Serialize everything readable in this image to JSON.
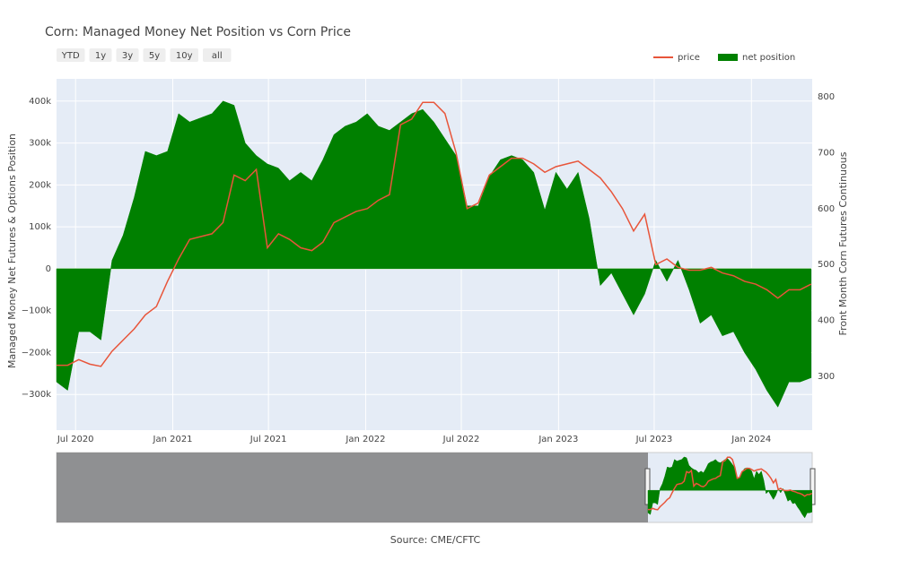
{
  "chart_data": {
    "type": "line",
    "title": "Corn: Managed Money Net Position vs Corn Price",
    "y_label": "Managed Money Net Futures & Options Position",
    "y2_label": "Front Month Corn Futures Continuous",
    "source": "Source: CME/CFTC",
    "range_buttons": [
      "YTD",
      "1y",
      "3y",
      "5y",
      "10y",
      "all"
    ],
    "legend_position": "top-right",
    "grid": true,
    "x": [
      "2020-05-26",
      "2020-06-16",
      "2020-07-07",
      "2020-07-28",
      "2020-08-18",
      "2020-09-08",
      "2020-09-29",
      "2020-10-20",
      "2020-11-10",
      "2020-12-01",
      "2020-12-22",
      "2021-01-12",
      "2021-02-02",
      "2021-02-23",
      "2021-03-16",
      "2021-04-06",
      "2021-04-27",
      "2021-05-18",
      "2021-06-08",
      "2021-06-29",
      "2021-07-20",
      "2021-08-10",
      "2021-08-31",
      "2021-09-21",
      "2021-10-12",
      "2021-11-02",
      "2021-11-23",
      "2021-12-14",
      "2022-01-04",
      "2022-01-25",
      "2022-02-15",
      "2022-03-08",
      "2022-03-29",
      "2022-04-19",
      "2022-05-10",
      "2022-05-31",
      "2022-06-21",
      "2022-07-12",
      "2022-08-02",
      "2022-08-23",
      "2022-09-13",
      "2022-10-04",
      "2022-10-25",
      "2022-11-15",
      "2022-12-06",
      "2022-12-27",
      "2023-01-17",
      "2023-02-07",
      "2023-02-28",
      "2023-03-21",
      "2023-04-11",
      "2023-05-02",
      "2023-05-23",
      "2023-06-13",
      "2023-07-04",
      "2023-07-25",
      "2023-08-15",
      "2023-09-05",
      "2023-09-26",
      "2023-10-17",
      "2023-11-07",
      "2023-11-28",
      "2023-12-19",
      "2024-01-09",
      "2024-01-30",
      "2024-02-20",
      "2024-03-12",
      "2024-04-02",
      "2024-04-23"
    ],
    "xlim": [
      "2020-05-26",
      "2024-04-25"
    ],
    "xticks": [
      {
        "value": "2020-07-01",
        "label": "Jul 2020"
      },
      {
        "value": "2021-01-01",
        "label": "Jan 2021"
      },
      {
        "value": "2021-07-01",
        "label": "Jul 2021"
      },
      {
        "value": "2022-01-01",
        "label": "Jan 2022"
      },
      {
        "value": "2022-07-01",
        "label": "Jul 2022"
      },
      {
        "value": "2023-01-01",
        "label": "Jan 2023"
      },
      {
        "value": "2023-07-01",
        "label": "Jul 2023"
      },
      {
        "value": "2024-01-01",
        "label": "Jan 2024"
      }
    ],
    "ylim": [
      -385000,
      453000
    ],
    "yticks": [
      {
        "value": -300000,
        "label": "−300k"
      },
      {
        "value": -200000,
        "label": "−200k"
      },
      {
        "value": -100000,
        "label": "−100k"
      },
      0,
      {
        "value": 100000,
        "label": "100k"
      },
      {
        "value": 200000,
        "label": "200k"
      },
      {
        "value": 300000,
        "label": "300k"
      },
      {
        "value": 400000,
        "label": "400k"
      }
    ],
    "y2lim": [
      204,
      832
    ],
    "y2ticks": [
      300,
      400,
      500,
      600,
      700,
      800
    ],
    "series": [
      {
        "name": "price",
        "type": "line",
        "axis": "y2",
        "color": "#e8553a",
        "values": [
          320,
          320,
          330,
          322,
          318,
          345,
          365,
          385,
          410,
          425,
          470,
          510,
          545,
          550,
          555,
          575,
          660,
          650,
          670,
          530,
          555,
          545,
          530,
          525,
          540,
          575,
          585,
          595,
          600,
          615,
          625,
          750,
          760,
          790,
          790,
          770,
          700,
          600,
          610,
          660,
          675,
          690,
          690,
          680,
          665,
          675,
          680,
          685,
          670,
          655,
          630,
          600,
          560,
          590,
          500,
          510,
          495,
          490,
          490,
          495,
          485,
          480,
          470,
          465,
          455,
          440,
          455,
          455,
          465
        ]
      },
      {
        "name": "net position",
        "type": "area",
        "color": "#008000",
        "values": [
          -270000,
          -290000,
          -150000,
          -150000,
          -170000,
          20000,
          80000,
          170000,
          280000,
          270000,
          280000,
          370000,
          350000,
          360000,
          370000,
          400000,
          390000,
          300000,
          270000,
          250000,
          240000,
          210000,
          230000,
          210000,
          260000,
          320000,
          340000,
          350000,
          370000,
          340000,
          330000,
          350000,
          370000,
          380000,
          350000,
          310000,
          270000,
          150000,
          150000,
          220000,
          260000,
          270000,
          260000,
          230000,
          140000,
          230000,
          190000,
          230000,
          120000,
          -40000,
          -10000,
          -60000,
          -110000,
          -60000,
          20000,
          -30000,
          20000,
          -50000,
          -130000,
          -110000,
          -160000,
          -150000,
          -200000,
          -240000,
          -290000,
          -330000,
          -270000,
          -270000,
          -260000
        ]
      }
    ]
  }
}
